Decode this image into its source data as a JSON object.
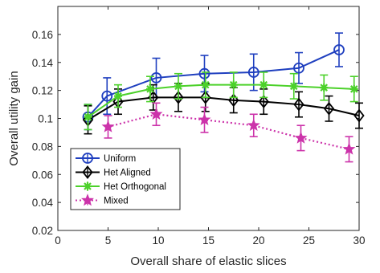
{
  "chart_data": {
    "type": "line",
    "title": "",
    "xlabel": "Overall share of elastic slices",
    "ylabel": "Overall utility gain",
    "xlim": [
      0,
      30
    ],
    "ylim": [
      0.02,
      0.18
    ],
    "xticks": [
      "0",
      "5",
      "10",
      "15",
      "20",
      "25",
      "30"
    ],
    "yticks": [
      "0.02",
      "0.04",
      "0.06",
      "0.08",
      "0.1",
      "0.12",
      "0.14",
      "0.16"
    ],
    "xtick_values": [
      0,
      5,
      10,
      15,
      20,
      25,
      30
    ],
    "ytick_values": [
      0.02,
      0.04,
      0.06,
      0.08,
      0.1,
      0.12,
      0.14,
      0.16
    ],
    "grid": false,
    "legend_position": "lower-left",
    "series": [
      {
        "name": "Uniform",
        "color": "#1f3fbf",
        "marker": "circle",
        "line_style": "solid",
        "x": [
          3,
          4.9,
          9.8,
          14.6,
          19.5,
          24,
          28
        ],
        "y": [
          0.101,
          0.116,
          0.129,
          0.132,
          0.133,
          0.136,
          0.149
        ],
        "err": [
          0.009,
          0.013,
          0.014,
          0.013,
          0.013,
          0.011,
          0.012
        ]
      },
      {
        "name": "Het Aligned",
        "color": "#000000",
        "marker": "diamond",
        "line_style": "solid",
        "x": [
          3,
          6,
          9.5,
          12,
          14.7,
          17.5,
          20.5,
          24,
          27,
          30
        ],
        "y": [
          0.099,
          0.112,
          0.115,
          0.115,
          0.115,
          0.113,
          0.112,
          0.11,
          0.107,
          0.102
        ],
        "err": [
          0.01,
          0.009,
          0.009,
          0.01,
          0.01,
          0.009,
          0.009,
          0.009,
          0.009,
          0.009
        ]
      },
      {
        "name": "Het Orthogonal",
        "color": "#4cd12a",
        "marker": "star",
        "line_style": "solid",
        "x": [
          3,
          6,
          9.2,
          12,
          14.7,
          17.5,
          20.5,
          23.5,
          26.5,
          29.5
        ],
        "y": [
          0.101,
          0.116,
          0.121,
          0.123,
          0.124,
          0.124,
          0.124,
          0.123,
          0.122,
          0.121
        ],
        "err": [
          0.009,
          0.008,
          0.009,
          0.009,
          0.009,
          0.009,
          0.009,
          0.009,
          0.009,
          0.009
        ]
      },
      {
        "name": "Mixed",
        "color": "#cc33aa",
        "marker": "pentagram",
        "line_style": "dotted",
        "x": [
          5,
          9.8,
          14.6,
          19.5,
          24.2,
          29
        ],
        "y": [
          0.094,
          0.103,
          0.099,
          0.095,
          0.086,
          0.078
        ],
        "err": [
          0.008,
          0.008,
          0.009,
          0.008,
          0.009,
          0.009
        ]
      }
    ]
  }
}
